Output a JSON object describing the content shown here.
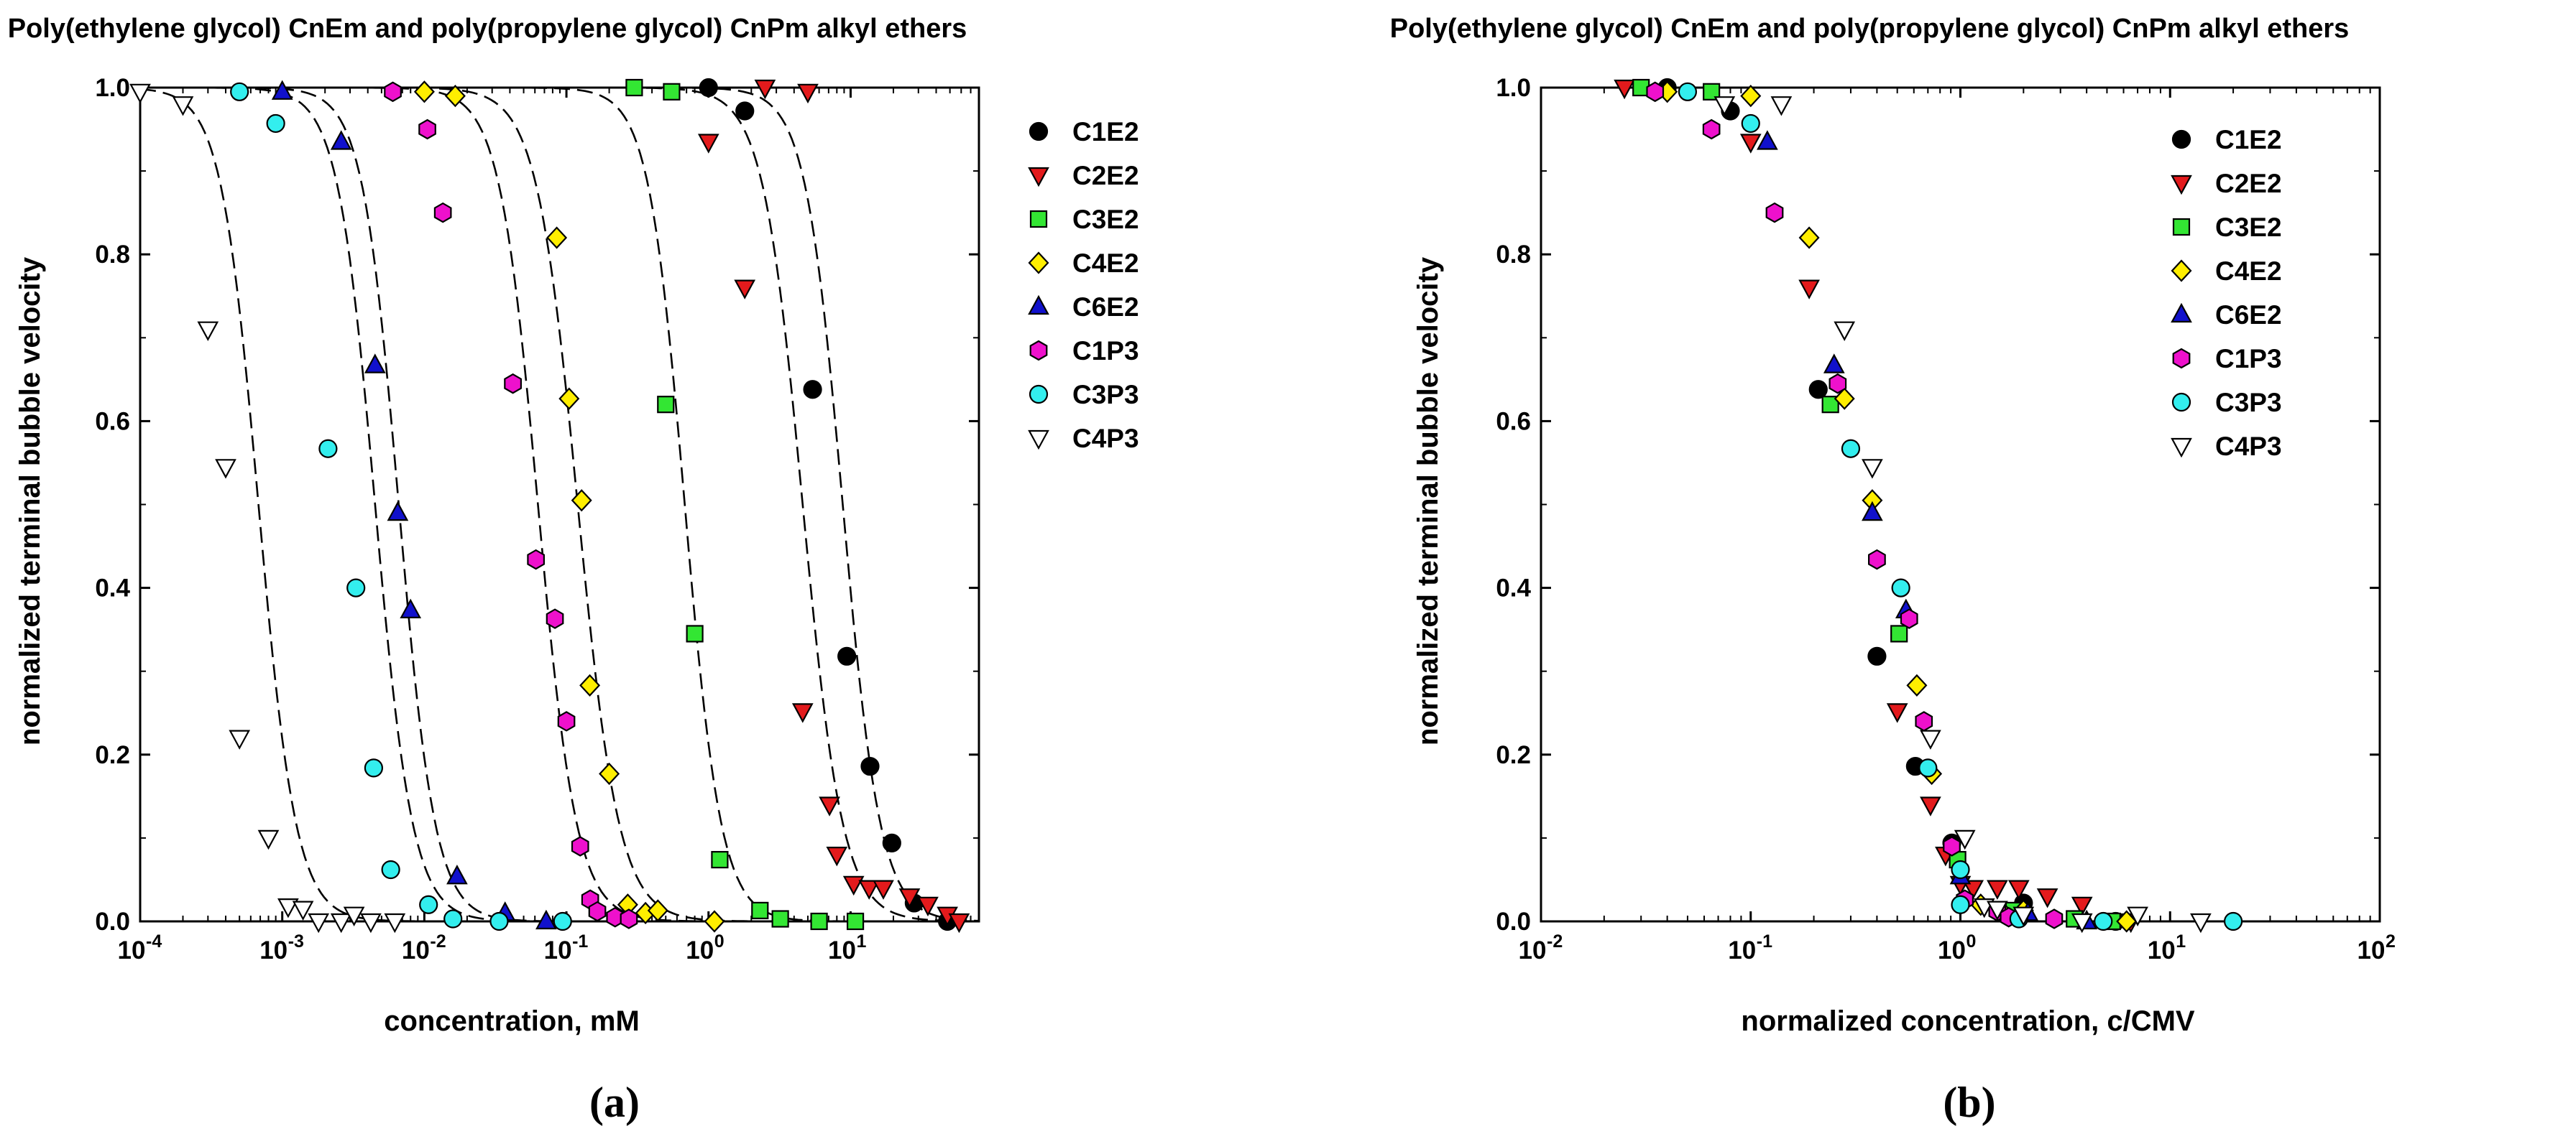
{
  "colors": {
    "C1E2": "#000000",
    "C2E2": "#e31a1c",
    "C3E2": "#33e633",
    "C4E2": "#ffee00",
    "C6E2": "#1111cc",
    "C1P3": "#ee11cc",
    "C3P3": "#33eeee",
    "C4P3": "#ffffff",
    "curve": "#000000",
    "marker_edge": "#000000"
  },
  "chart_data": [
    {
      "type": "scatter",
      "panel_label": "(a)",
      "title": "Poly(ethylene glycol) CnEm and poly(propylene glycol) CnPm alkyl ethers",
      "xlabel": "concentration, mM",
      "ylabel": "normalized terminal bubble velocity",
      "xscale": "log",
      "xlim": [
        0.0001,
        80
      ],
      "ylim": [
        0,
        1.0
      ],
      "x_ticks": [
        {
          "value": 0.0001,
          "base": "10",
          "exp": "-4"
        },
        {
          "value": 0.001,
          "base": "10",
          "exp": "-3"
        },
        {
          "value": 0.01,
          "base": "10",
          "exp": "-2"
        },
        {
          "value": 0.1,
          "base": "10",
          "exp": "-1"
        },
        {
          "value": 1,
          "base": "10",
          "exp": "0"
        },
        {
          "value": 10,
          "base": "10",
          "exp": "1"
        }
      ],
      "y_ticks": [
        {
          "value": 0,
          "label": "0.0"
        },
        {
          "value": 0.2,
          "label": "0.2"
        },
        {
          "value": 0.4,
          "label": "0.4"
        },
        {
          "value": 0.6,
          "label": "0.6"
        },
        {
          "value": 0.8,
          "label": "0.8"
        },
        {
          "value": 1.0,
          "label": "1.0"
        }
      ],
      "legend_position": "top-right (outside plot)",
      "fit_curves": [
        {
          "series": "C1E2",
          "x50": 8.8,
          "n": 3.3
        },
        {
          "series": "C2E2",
          "x50": 4.6,
          "n": 3.1
        },
        {
          "series": "C3E2",
          "x50": 0.68,
          "n": 3.4
        },
        {
          "series": "C4E2",
          "x50": 0.12,
          "n": 3.0
        },
        {
          "series": "C6E2",
          "x50": 0.0066,
          "n": 3.4
        },
        {
          "series": "C1P3",
          "x50": 0.063,
          "n": 3.2
        },
        {
          "series": "C3P3",
          "x50": 0.0045,
          "n": 3.3
        },
        {
          "series": "C4P3",
          "x50": 0.00068,
          "n": 3.3
        }
      ],
      "series": [
        {
          "name": "C1E2",
          "marker": "circle",
          "x": [
            1.0,
            1.8,
            5.4,
            9.4,
            13.7,
            19.5,
            28,
            48
          ],
          "y": [
            1.0,
            0.972,
            0.638,
            0.318,
            0.186,
            0.094,
            0.022,
            0.0
          ]
        },
        {
          "name": "C2E2",
          "marker": "triangle-down",
          "x": [
            2.5,
            5.0,
            1.0,
            1.8,
            4.6,
            7.1,
            8.0,
            10.5,
            13.5,
            17.0,
            26,
            35,
            48,
            58
          ],
          "y": [
            1.0,
            0.995,
            0.935,
            0.76,
            0.252,
            0.14,
            0.08,
            0.045,
            0.04,
            0.04,
            0.03,
            0.02,
            0.008,
            0.0
          ]
        },
        {
          "name": "C3E2",
          "marker": "square",
          "x": [
            0.3,
            0.55,
            0.5,
            0.8,
            1.2,
            2.3,
            3.2,
            6.0,
            10.8
          ],
          "y": [
            1.0,
            0.995,
            0.62,
            0.345,
            0.074,
            0.013,
            0.003,
            0.0,
            0.0
          ]
        },
        {
          "name": "C4E2",
          "marker": "diamond",
          "x": [
            0.01,
            0.0165,
            0.0855,
            0.1044,
            0.1279,
            0.146,
            0.2,
            0.27,
            0.36,
            0.44,
            1.1
          ],
          "y": [
            0.995,
            0.99,
            0.82,
            0.627,
            0.505,
            0.283,
            0.177,
            0.02,
            0.01,
            0.013,
            0.0
          ]
        },
        {
          "name": "C6E2",
          "marker": "triangle-up",
          "x": [
            0.001,
            0.0026,
            0.0045,
            0.0065,
            0.008,
            0.017,
            0.037,
            0.072
          ],
          "y": [
            0.995,
            0.935,
            0.667,
            0.49,
            0.373,
            0.054,
            0.01,
            0.0
          ]
        },
        {
          "name": "C1P3",
          "marker": "hexagon",
          "x": [
            0.006,
            0.0105,
            0.0135,
            0.042,
            0.061,
            0.083,
            0.1,
            0.125,
            0.147,
            0.165,
            0.22,
            0.275
          ],
          "y": [
            0.995,
            0.95,
            0.85,
            0.645,
            0.434,
            0.363,
            0.24,
            0.09,
            0.026,
            0.012,
            0.005,
            0.003
          ]
        },
        {
          "name": "C3P3",
          "marker": "circle",
          "x": [
            0.0005,
            0.0009,
            0.0021,
            0.0033,
            0.0044,
            0.0058,
            0.0107,
            0.0159,
            0.0336,
            0.094
          ],
          "y": [
            0.995,
            0.957,
            0.567,
            0.4,
            0.184,
            0.062,
            0.02,
            0.003,
            0.0,
            0.0
          ]
        },
        {
          "name": "C4P3",
          "marker": "triangle-down-open",
          "x": [
            0.0001,
            0.0002,
            0.0003,
            0.0004,
            0.0005,
            0.0008,
            0.0011,
            0.0014,
            0.0018,
            0.0026,
            0.0032,
            0.0042,
            0.0062
          ],
          "y": [
            0.995,
            0.98,
            0.71,
            0.545,
            0.22,
            0.1,
            0.018,
            0.015,
            0.0,
            0.0,
            0.008,
            0.0,
            0.0
          ]
        }
      ]
    },
    {
      "type": "scatter",
      "panel_label": "(b)",
      "title": "Poly(ethylene glycol) CnEm and poly(propylene glycol) CnPm alkyl ethers",
      "xlabel": "normalized concentration, c/CMV",
      "ylabel": "normalized terminal bubble velocity",
      "xscale": "log",
      "xlim": [
        0.01,
        100
      ],
      "ylim": [
        0,
        1.0
      ],
      "x_ticks": [
        {
          "value": 0.01,
          "base": "10",
          "exp": "-2"
        },
        {
          "value": 0.1,
          "base": "10",
          "exp": "-1"
        },
        {
          "value": 1,
          "base": "10",
          "exp": "0"
        },
        {
          "value": 10,
          "base": "10",
          "exp": "1"
        },
        {
          "value": 100,
          "base": "10",
          "exp": "2"
        }
      ],
      "y_ticks": [
        {
          "value": 0,
          "label": "0.0"
        },
        {
          "value": 0.2,
          "label": "0.2"
        },
        {
          "value": 0.4,
          "label": "0.4"
        },
        {
          "value": 0.6,
          "label": "0.6"
        },
        {
          "value": 0.8,
          "label": "0.8"
        },
        {
          "value": 1.0,
          "label": "1.0"
        }
      ],
      "legend_position": "top-right (inside plot)",
      "series": [
        {
          "name": "C1E2",
          "marker": "circle",
          "x": [
            0.04,
            0.08,
            0.21,
            0.4,
            0.61,
            0.91,
            2.0,
            5.5
          ],
          "y": [
            1.0,
            0.972,
            0.638,
            0.318,
            0.186,
            0.094,
            0.022,
            0.0
          ]
        },
        {
          "name": "C2E2",
          "marker": "triangle-down",
          "x": [
            0.025,
            0.1,
            0.19,
            0.5,
            0.72,
            0.85,
            1.0,
            1.15,
            1.5,
            1.9,
            2.6,
            3.8,
            6.5
          ],
          "y": [
            1.0,
            0.935,
            0.76,
            0.252,
            0.14,
            0.08,
            0.045,
            0.04,
            0.04,
            0.04,
            0.03,
            0.02,
            0.0
          ]
        },
        {
          "name": "C3E2",
          "marker": "square",
          "x": [
            0.03,
            0.065,
            0.24,
            0.51,
            0.97,
            1.8,
            3.5,
            5.3
          ],
          "y": [
            1.0,
            0.995,
            0.62,
            0.345,
            0.074,
            0.013,
            0.003,
            0.0
          ]
        },
        {
          "name": "C4E2",
          "marker": "diamond",
          "x": [
            0.04,
            0.1,
            0.19,
            0.28,
            0.38,
            0.62,
            0.73,
            1.25,
            1.6,
            2.0,
            6.2
          ],
          "y": [
            0.995,
            0.99,
            0.82,
            0.627,
            0.505,
            0.283,
            0.177,
            0.02,
            0.01,
            0.013,
            0.0
          ]
        },
        {
          "name": "C6E2",
          "marker": "triangle-up",
          "x": [
            0.12,
            0.25,
            0.38,
            0.55,
            1.0,
            2.1,
            4.0
          ],
          "y": [
            0.935,
            0.667,
            0.49,
            0.373,
            0.054,
            0.01,
            0.0
          ]
        },
        {
          "name": "C1P3",
          "marker": "hexagon",
          "x": [
            0.035,
            0.065,
            0.13,
            0.26,
            0.4,
            0.57,
            0.67,
            0.91,
            1.05,
            1.5,
            1.7,
            2.8
          ],
          "y": [
            0.995,
            0.95,
            0.85,
            0.645,
            0.434,
            0.363,
            0.24,
            0.09,
            0.026,
            0.012,
            0.005,
            0.003
          ]
        },
        {
          "name": "C3P3",
          "marker": "circle",
          "x": [
            0.05,
            0.1,
            0.3,
            0.52,
            0.7,
            1.0,
            1.0,
            1.9,
            4.8,
            20
          ],
          "y": [
            0.995,
            0.957,
            0.567,
            0.4,
            0.184,
            0.062,
            0.02,
            0.003,
            0.0,
            0.0
          ]
        },
        {
          "name": "C4P3",
          "marker": "triangle-down-open",
          "x": [
            0.075,
            0.14,
            0.28,
            0.38,
            0.72,
            1.05,
            1.3,
            1.5,
            2.0,
            3.8,
            7.0,
            14
          ],
          "y": [
            0.98,
            0.98,
            0.71,
            0.545,
            0.22,
            0.1,
            0.018,
            0.015,
            0.008,
            0.0,
            0.008,
            0.0
          ]
        }
      ]
    }
  ]
}
